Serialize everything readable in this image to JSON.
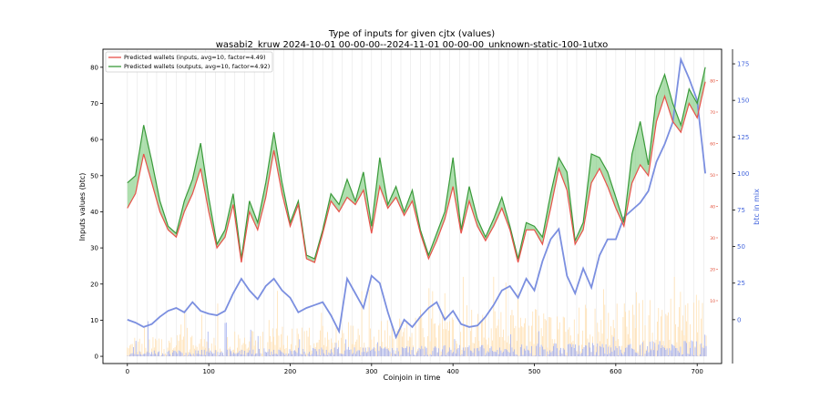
{
  "chart_data": {
    "type": "line",
    "title": "Type of inputs for given cjtx (values)",
    "subtitle": "wasabi2_kruw 2024-10-01 00-00-00--2024-11-01 00-00-00_unknown-static-100-1utxo",
    "xlabel": "Coinjoin in time",
    "ylabel": "Inputs values (btc)",
    "y2label": "btc in mix",
    "xlim": [
      -30,
      730
    ],
    "ylim": [
      -2,
      85
    ],
    "y2lim": [
      -30,
      185
    ],
    "y3lim": [
      -10,
      90
    ],
    "x_ticks": [
      0,
      100,
      200,
      300,
      400,
      500,
      600,
      700
    ],
    "y_ticks": [
      0,
      10,
      20,
      30,
      40,
      50,
      60,
      70,
      80
    ],
    "y2_ticks": [
      0,
      25,
      50,
      75,
      100,
      125,
      150,
      175
    ],
    "y3_ticks": [
      10,
      20,
      30,
      40,
      50,
      60,
      70,
      80
    ],
    "grid": "vertical lines",
    "legend_placement": "top-left",
    "colors": {
      "inputs": "#e8524a",
      "outputs": "#3a9a3a",
      "fill_outputs": "#6cc46c",
      "fill_inputs": "#f07070",
      "btc_in_mix": "#7b8fe0",
      "red_axis": "#e24a33",
      "blue_axis": "#4466dd"
    },
    "series": [
      {
        "name": "Predicted wallets (inputs, avg=10, factor=4.49)",
        "x": [
          0,
          10,
          20,
          30,
          40,
          50,
          60,
          70,
          80,
          90,
          100,
          110,
          120,
          130,
          140,
          150,
          160,
          170,
          180,
          190,
          200,
          210,
          220,
          230,
          240,
          250,
          260,
          270,
          280,
          290,
          300,
          310,
          320,
          330,
          340,
          350,
          360,
          370,
          380,
          390,
          400,
          410,
          420,
          430,
          440,
          450,
          460,
          470,
          480,
          490,
          500,
          510,
          520,
          530,
          540,
          550,
          560,
          570,
          580,
          590,
          600,
          610,
          620,
          630,
          640,
          650,
          660,
          670,
          680,
          690,
          700,
          710
        ],
        "values": [
          41,
          45,
          56,
          48,
          40,
          35,
          33,
          40,
          45,
          52,
          40,
          30,
          33,
          42,
          26,
          40,
          35,
          44,
          57,
          45,
          36,
          42,
          27,
          26,
          34,
          43,
          40,
          44,
          42,
          46,
          34,
          47,
          41,
          44,
          39,
          43,
          34,
          27,
          32,
          38,
          47,
          34,
          43,
          36,
          32,
          36,
          41,
          35,
          26,
          35,
          35,
          31,
          41,
          52,
          46,
          31,
          35,
          48,
          52,
          47,
          41,
          36,
          48,
          53,
          50,
          65,
          72,
          65,
          62,
          70,
          66,
          76
        ]
      },
      {
        "name": "Predicted wallets (outputs, avg=10, factor=4.92)",
        "x": [
          0,
          10,
          20,
          30,
          40,
          50,
          60,
          70,
          80,
          90,
          100,
          110,
          120,
          130,
          140,
          150,
          160,
          170,
          180,
          190,
          200,
          210,
          220,
          230,
          240,
          250,
          260,
          270,
          280,
          290,
          300,
          310,
          320,
          330,
          340,
          350,
          360,
          370,
          380,
          390,
          400,
          410,
          420,
          430,
          440,
          450,
          460,
          470,
          480,
          490,
          500,
          510,
          520,
          530,
          540,
          550,
          560,
          570,
          580,
          590,
          600,
          610,
          620,
          630,
          640,
          650,
          660,
          670,
          680,
          690,
          700,
          710
        ],
        "values": [
          48,
          50,
          64,
          54,
          43,
          36,
          34,
          43,
          49,
          59,
          44,
          31,
          35,
          45,
          27,
          43,
          37,
          48,
          62,
          48,
          37,
          43,
          28,
          27,
          35,
          45,
          42,
          49,
          43,
          51,
          36,
          55,
          42,
          47,
          40,
          46,
          35,
          28,
          34,
          40,
          55,
          35,
          47,
          38,
          33,
          38,
          44,
          36,
          27,
          37,
          36,
          33,
          45,
          55,
          51,
          32,
          37,
          56,
          55,
          51,
          44,
          37,
          56,
          65,
          53,
          72,
          78,
          70,
          64,
          74,
          70,
          80
        ]
      },
      {
        "name": "btc in mix",
        "axis": "right",
        "x": [
          0,
          10,
          20,
          30,
          40,
          50,
          60,
          70,
          80,
          90,
          100,
          110,
          120,
          130,
          140,
          150,
          160,
          170,
          180,
          190,
          200,
          210,
          220,
          230,
          240,
          250,
          260,
          270,
          280,
          290,
          300,
          310,
          320,
          330,
          340,
          350,
          360,
          370,
          380,
          390,
          400,
          410,
          420,
          430,
          440,
          450,
          460,
          470,
          480,
          490,
          500,
          510,
          520,
          530,
          540,
          550,
          560,
          570,
          580,
          590,
          600,
          610,
          620,
          630,
          640,
          650,
          660,
          670,
          680,
          690,
          700,
          710
        ],
        "values": [
          0,
          -2,
          -5,
          -3,
          2,
          6,
          8,
          5,
          12,
          6,
          4,
          3,
          6,
          18,
          28,
          20,
          14,
          23,
          28,
          20,
          15,
          5,
          8,
          10,
          12,
          3,
          -8,
          28,
          18,
          8,
          30,
          25,
          5,
          -12,
          0,
          -5,
          2,
          8,
          12,
          0,
          6,
          -3,
          -5,
          -4,
          2,
          10,
          20,
          23,
          15,
          28,
          20,
          40,
          55,
          62,
          30,
          18,
          35,
          22,
          44,
          55,
          55,
          70,
          75,
          80,
          88,
          108,
          120,
          135,
          178,
          165,
          150,
          100
        ]
      }
    ]
  }
}
